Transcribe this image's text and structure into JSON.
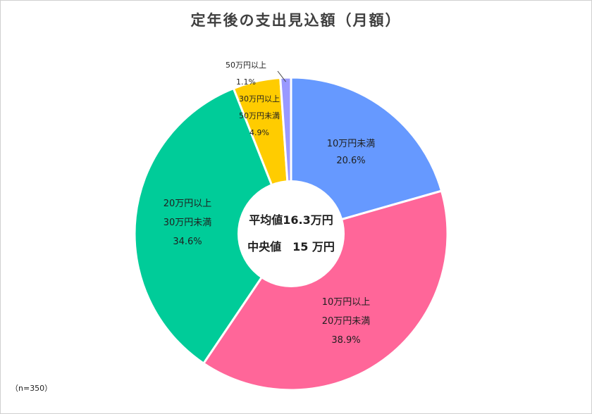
{
  "chart_data": {
    "type": "pie",
    "donut": true,
    "title": "定年後の支出見込額（月額）",
    "slices": [
      {
        "label_lines": [
          "10万円未満"
        ],
        "value_label": "20.6%",
        "value": 20.6,
        "color": "#6699ff"
      },
      {
        "label_lines": [
          "10万円以上",
          "20万円未満"
        ],
        "value_label": "38.9%",
        "value": 38.9,
        "color": "#ff6699"
      },
      {
        "label_lines": [
          "20万円以上",
          "30万円未満"
        ],
        "value_label": "34.6%",
        "value": 34.6,
        "color": "#00cc99"
      },
      {
        "label_lines": [
          "30万円以上",
          "50万円未満"
        ],
        "value_label": "4.9%",
        "value": 4.9,
        "color": "#ffcc00"
      },
      {
        "label_lines": [
          "50万円以上"
        ],
        "value_label": "1.1%",
        "value": 1.1,
        "color": "#9999ff"
      }
    ],
    "center": {
      "line1": "平均値16.3万円",
      "line2": "中央値　15 万円"
    },
    "note": "（n=350）"
  }
}
